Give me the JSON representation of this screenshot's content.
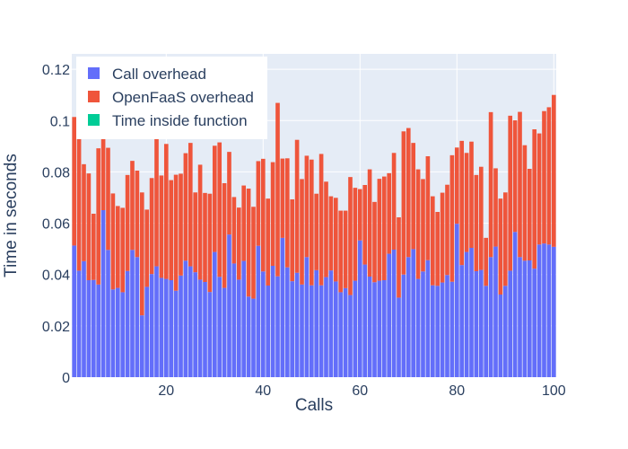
{
  "chart_data": {
    "type": "bar",
    "barmode": "stack",
    "title": "",
    "xlabel": "Calls",
    "ylabel": "Time in seconds",
    "xlim": [
      0.5,
      100.5
    ],
    "ylim": [
      0,
      0.126
    ],
    "x_ticks": [
      20,
      40,
      60,
      80,
      100
    ],
    "y_ticks": [
      0,
      0.02,
      0.04,
      0.06,
      0.08,
      0.1,
      0.12
    ],
    "y_tick_labels": [
      "0",
      "0.02",
      "0.04",
      "0.06",
      "0.08",
      "0.1",
      "0.12"
    ],
    "grid": true,
    "legend_position": "top-left",
    "x": [
      1,
      2,
      3,
      4,
      5,
      6,
      7,
      8,
      9,
      10,
      11,
      12,
      13,
      14,
      15,
      16,
      17,
      18,
      19,
      20,
      21,
      22,
      23,
      24,
      25,
      26,
      27,
      28,
      29,
      30,
      31,
      32,
      33,
      34,
      35,
      36,
      37,
      38,
      39,
      40,
      41,
      42,
      43,
      44,
      45,
      46,
      47,
      48,
      49,
      50,
      51,
      52,
      53,
      54,
      55,
      56,
      57,
      58,
      59,
      60,
      61,
      62,
      63,
      64,
      65,
      66,
      67,
      68,
      69,
      70,
      71,
      72,
      73,
      74,
      75,
      76,
      77,
      78,
      79,
      80,
      81,
      82,
      83,
      84,
      85,
      86,
      87,
      88,
      89,
      90,
      91,
      92,
      93,
      94,
      95,
      96,
      97,
      98,
      99,
      100
    ],
    "series": [
      {
        "name": "Call overhead",
        "color": "#636efa",
        "values": [
          0.0513,
          0.0415,
          0.0452,
          0.0378,
          0.0379,
          0.0361,
          0.0651,
          0.0496,
          0.0342,
          0.0348,
          0.0331,
          0.0414,
          0.0496,
          0.0468,
          0.0241,
          0.0352,
          0.0402,
          0.0432,
          0.0387,
          0.0383,
          0.0378,
          0.0337,
          0.0396,
          0.0454,
          0.0432,
          0.0409,
          0.038,
          0.0371,
          0.0332,
          0.0488,
          0.0391,
          0.0348,
          0.0556,
          0.0443,
          0.038,
          0.0453,
          0.0314,
          0.0306,
          0.0512,
          0.0412,
          0.0357,
          0.0434,
          0.0393,
          0.0543,
          0.0428,
          0.0374,
          0.0407,
          0.0361,
          0.0468,
          0.0358,
          0.0417,
          0.0358,
          0.039,
          0.0416,
          0.0373,
          0.0331,
          0.0347,
          0.032,
          0.0376,
          0.0533,
          0.0439,
          0.0392,
          0.037,
          0.0376,
          0.0378,
          0.0481,
          0.0497,
          0.031,
          0.04,
          0.0468,
          0.0499,
          0.0383,
          0.0412,
          0.0456,
          0.0358,
          0.0356,
          0.0369,
          0.0398,
          0.0372,
          0.0598,
          0.0437,
          0.0488,
          0.0504,
          0.0413,
          0.0418,
          0.0356,
          0.0468,
          0.0509,
          0.0322,
          0.0356,
          0.0415,
          0.0566,
          0.0468,
          0.0454,
          0.0455,
          0.0423,
          0.0517,
          0.0521,
          0.0517,
          0.0508
        ]
      },
      {
        "name": "OpenFaaS overhead",
        "color": "#ef553b",
        "values": [
          0.0501,
          0.0515,
          0.0378,
          0.0416,
          0.0258,
          0.0531,
          0.0299,
          0.0398,
          0.0374,
          0.0319,
          0.0329,
          0.0374,
          0.0347,
          0.0337,
          0.0479,
          0.0301,
          0.0374,
          0.0509,
          0.0399,
          0.0526,
          0.039,
          0.0452,
          0.0397,
          0.0419,
          0.0481,
          0.0311,
          0.0448,
          0.0347,
          0.0383,
          0.0414,
          0.0524,
          0.0408,
          0.0322,
          0.0259,
          0.0281,
          0.0294,
          0.0421,
          0.0358,
          0.033,
          0.0439,
          0.0339,
          0.0404,
          0.0676,
          0.0309,
          0.0425,
          0.0319,
          0.0518,
          0.0411,
          0.0395,
          0.049,
          0.0298,
          0.0512,
          0.0372,
          0.0289,
          0.0326,
          0.0318,
          0.0302,
          0.046,
          0.0362,
          0.02,
          0.031,
          0.0418,
          0.0313,
          0.0397,
          0.0404,
          0.0314,
          0.0377,
          0.0313,
          0.0558,
          0.0503,
          0.0414,
          0.0427,
          0.036,
          0.0405,
          0.0347,
          0.0288,
          0.035,
          0.0352,
          0.0493,
          0.0297,
          0.0484,
          0.0386,
          0.0414,
          0.0375,
          0.0402,
          0.0187,
          0.0565,
          0.0305,
          0.0374,
          0.0364,
          0.0604,
          0.0435,
          0.0566,
          0.045,
          0.0357,
          0.0543,
          0.0433,
          0.0516,
          0.0535,
          0.0592
        ]
      },
      {
        "name": "Time inside function",
        "color": "#00cc96",
        "values": [
          0,
          0,
          0,
          0,
          0,
          0,
          0,
          0,
          0,
          0,
          0,
          0,
          0,
          0,
          0,
          0,
          0,
          0,
          0,
          0,
          0,
          0,
          0,
          0,
          0,
          0,
          0,
          0,
          0,
          0,
          0,
          0,
          0,
          0,
          0,
          0,
          0,
          0,
          0,
          0,
          0,
          0,
          0,
          0,
          0,
          0,
          0,
          0,
          0,
          0,
          0,
          0,
          0,
          0,
          0,
          0,
          0,
          0,
          0,
          0,
          0,
          0,
          0,
          0,
          0,
          0,
          0,
          0,
          0,
          0,
          0,
          0,
          0,
          0,
          0,
          0,
          0,
          0,
          0,
          0,
          0,
          0,
          0,
          0,
          0,
          0,
          0,
          0,
          0,
          0,
          0,
          0,
          0,
          0,
          0,
          0,
          0,
          0,
          0,
          0
        ]
      }
    ]
  },
  "colors": {
    "plot_background": "#e5ecf6",
    "gridline": "#ffffff",
    "axis_text": "#2a3f5f",
    "legend_background": "#ffffff"
  }
}
